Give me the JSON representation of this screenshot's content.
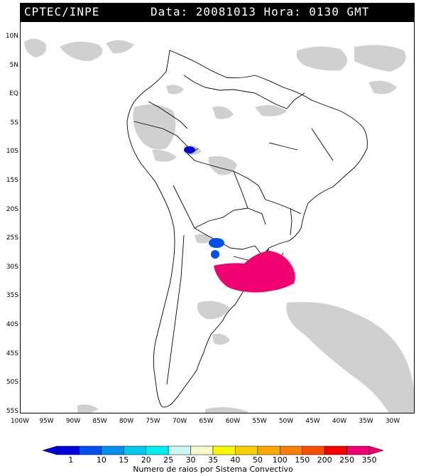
{
  "header": {
    "source": "CPTEC/INPE",
    "datetime": "Data: 20081013 Hora: 0130 GMT"
  },
  "latitude_labels": [
    "10N",
    "5N",
    "EQ",
    "5S",
    "10S",
    "15S",
    "20S",
    "25S",
    "30S",
    "35S",
    "40S",
    "45S",
    "50S",
    "55S"
  ],
  "longitude_labels": [
    "100W",
    "95W",
    "90W",
    "85W",
    "80W",
    "75W",
    "70W",
    "65W",
    "60W",
    "55W",
    "50W",
    "45W",
    "40W",
    "35W",
    "30W"
  ],
  "legend": {
    "title": "Numero de raios por Sistema Convectivo",
    "ticks": [
      "1",
      "10",
      "15",
      "20",
      "25",
      "30",
      "35",
      "40",
      "50",
      "100",
      "150",
      "200",
      "250",
      "350"
    ],
    "colors": [
      "#0000dd",
      "#0050f0",
      "#0090f0",
      "#00c8f0",
      "#00f0f0",
      "#c8f8f0",
      "#f8f8c8",
      "#f8f800",
      "#f8d000",
      "#f8a800",
      "#f88000",
      "#f85000",
      "#f80000",
      "#f00070"
    ]
  },
  "convective_systems": [
    {
      "name": "peru-brazil-border",
      "lon": -67.5,
      "lat": -9.5,
      "color": "#0000dd"
    },
    {
      "name": "northern-argentina-1",
      "lon": -62.5,
      "lat": -25.8,
      "color": "#0050f0"
    },
    {
      "name": "northern-argentina-2",
      "lon": -62.3,
      "lat": -27.8,
      "color": "#0050f0"
    },
    {
      "name": "southern-brazil-uruguay",
      "lon": -57.0,
      "lat": -30.5,
      "color": "#f00070"
    }
  ]
}
